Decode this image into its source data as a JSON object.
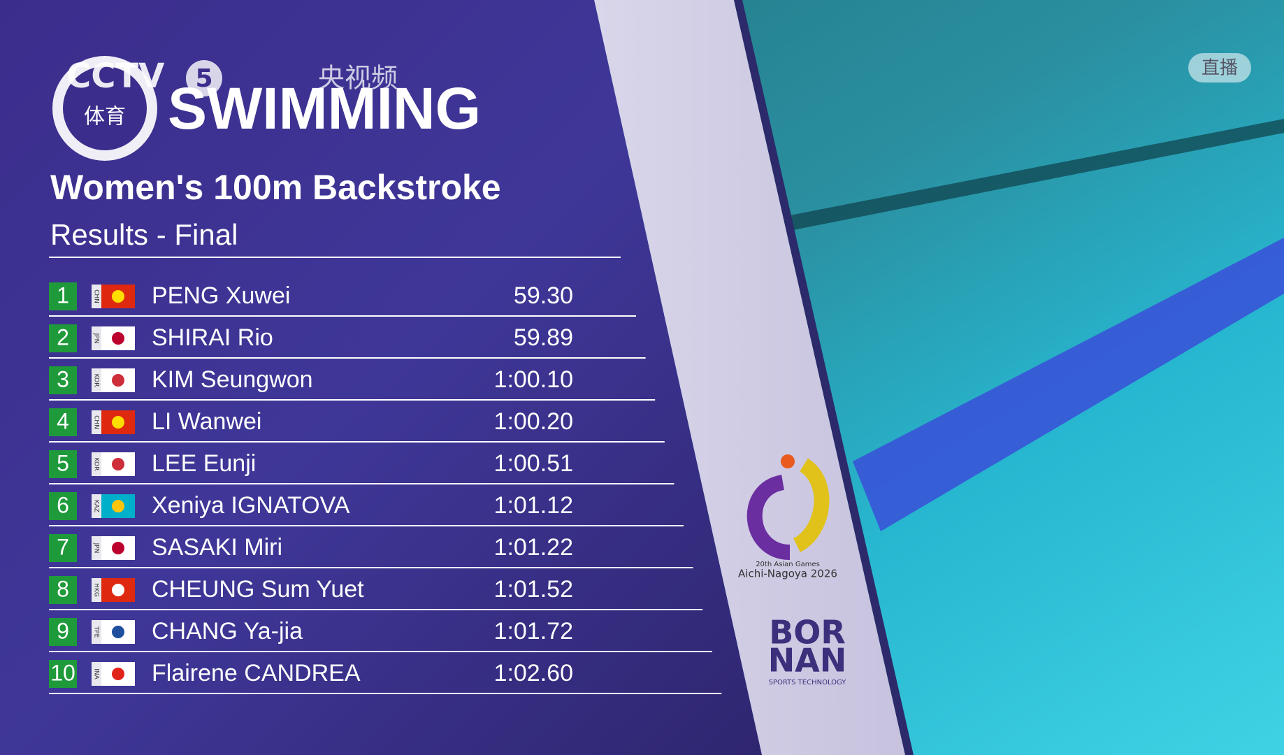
{
  "broadcast": {
    "channel": "CCTV",
    "channel_number": "5",
    "app": "央视频",
    "sport_label": "体育",
    "live": "直播"
  },
  "header": {
    "sport": "SWIMMING",
    "event": "Women's 100m Backstroke",
    "phase": "Results - Final"
  },
  "table": {
    "rows": [
      {
        "rank": 1,
        "noc": "CHN",
        "flag": "#de2910",
        "emblem": "#ffde00",
        "name": "PENG Xuwei",
        "time": "59.30"
      },
      {
        "rank": 2,
        "noc": "JPN",
        "flag": "#ffffff",
        "emblem": "#bc002d",
        "name": "SHIRAI Rio",
        "time": "59.89"
      },
      {
        "rank": 3,
        "noc": "KOR",
        "flag": "#ffffff",
        "emblem": "#cd2e3a",
        "name": "KIM Seungwon",
        "time": "1:00.10"
      },
      {
        "rank": 4,
        "noc": "CHN",
        "flag": "#de2910",
        "emblem": "#ffde00",
        "name": "LI Wanwei",
        "time": "1:00.20"
      },
      {
        "rank": 5,
        "noc": "KOR",
        "flag": "#ffffff",
        "emblem": "#cd2e3a",
        "name": "LEE Eunji",
        "time": "1:00.51"
      },
      {
        "rank": 6,
        "noc": "KAZ",
        "flag": "#00afca",
        "emblem": "#fec50c",
        "name": "Xeniya IGNATOVA",
        "time": "1:01.12"
      },
      {
        "rank": 7,
        "noc": "JPN",
        "flag": "#ffffff",
        "emblem": "#bc002d",
        "name": "SASAKI Miri",
        "time": "1:01.22"
      },
      {
        "rank": 8,
        "noc": "HKG",
        "flag": "#de2910",
        "emblem": "#ffffff",
        "name": "CHEUNG Sum Yuet",
        "time": "1:01.52"
      },
      {
        "rank": 9,
        "noc": "TPE",
        "flag": "#ffffff",
        "emblem": "#1f4e9c",
        "name": "CHANG Ya-jia",
        "time": "1:01.72"
      },
      {
        "rank": 10,
        "noc": "INA",
        "flag": "#ffffff",
        "emblem": "#e2231a",
        "name": "Flairene CANDREA",
        "time": "1:02.60"
      }
    ]
  },
  "sponsors": {
    "games_edition": "20th Asian Games",
    "games_host": "Aichi-Nagoya 2026",
    "timing_top": "BOR",
    "timing_bottom": "NAN",
    "timing_tagline": "SPORTS TECHNOLOGY"
  }
}
